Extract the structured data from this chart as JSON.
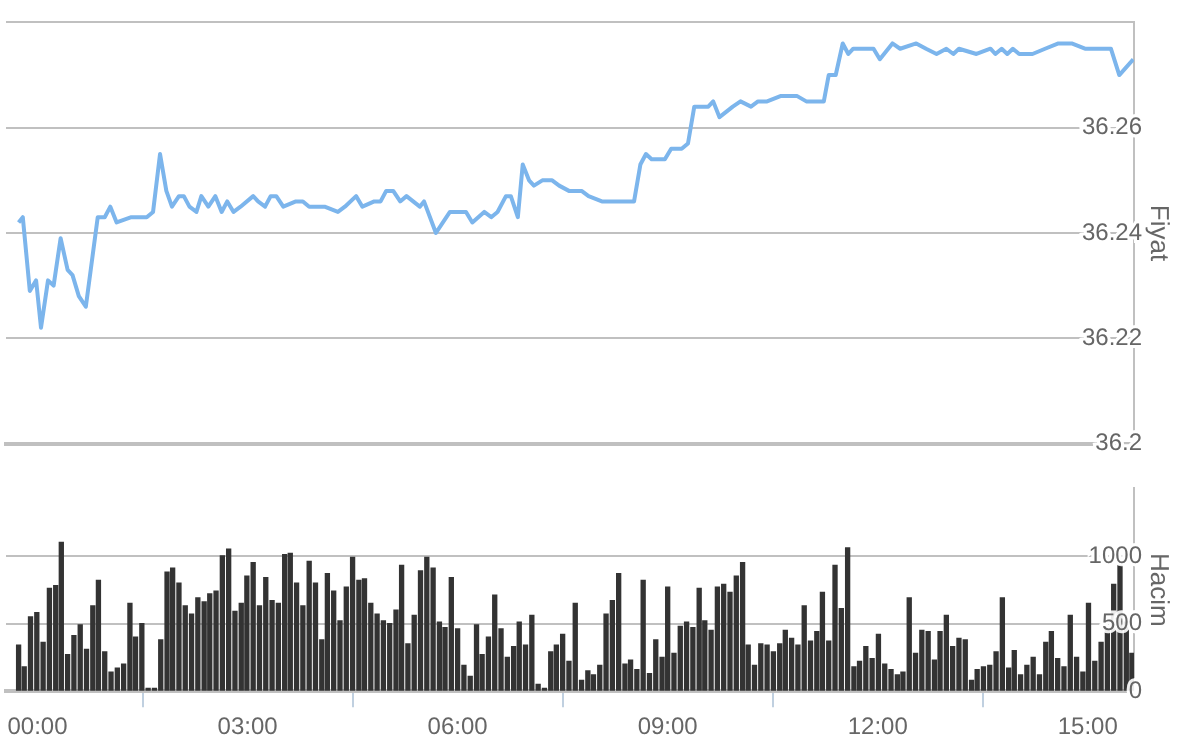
{
  "chart_data": [
    {
      "type": "line",
      "ylabel": "Fiyat",
      "color": "#7cb5ec",
      "x": [
        -0.27,
        -0.21,
        -0.11,
        -0.02,
        0.05,
        0.15,
        0.23,
        0.33,
        0.43,
        0.5,
        0.59,
        0.69,
        0.86,
        0.96,
        1.04,
        1.13,
        1.34,
        1.56,
        1.65,
        1.75,
        1.84,
        1.92,
        2.02,
        2.09,
        2.17,
        2.27,
        2.34,
        2.44,
        2.54,
        2.63,
        2.71,
        2.8,
        2.9,
        3.08,
        3.15,
        3.25,
        3.33,
        3.41,
        3.51,
        3.69,
        3.79,
        3.88,
        4.1,
        4.29,
        4.39,
        4.55,
        4.64,
        4.81,
        4.9,
        4.98,
        5.08,
        5.18,
        5.27,
        5.46,
        5.52,
        5.69,
        5.79,
        5.89,
        6.02,
        6.12,
        6.21,
        6.38,
        6.48,
        6.57,
        6.69,
        6.76,
        6.86,
        6.93,
        7.02,
        7.09,
        7.21,
        7.35,
        7.45,
        7.59,
        7.77,
        7.87,
        8.06,
        8.52,
        8.61,
        8.69,
        8.77,
        8.96,
        9.05,
        9.2,
        9.29,
        9.38,
        9.58,
        9.65,
        9.74,
        9.93,
        10.04,
        10.19,
        10.29,
        10.42,
        10.61,
        10.73,
        10.85,
        10.98,
        11.23,
        11.3,
        11.4,
        11.5,
        11.58,
        11.65,
        11.8,
        11.94,
        12.03,
        12.21,
        12.32,
        12.55,
        12.69,
        12.84,
        12.98,
        13.08,
        13.16,
        13.41,
        13.61,
        13.68,
        13.77,
        13.85,
        13.93,
        14.02,
        14.21,
        14.39,
        14.58,
        14.77,
        14.96,
        15.16,
        15.33,
        15.45,
        15.65
      ],
      "values": [
        36.242,
        36.243,
        36.229,
        36.231,
        36.222,
        36.231,
        36.23,
        36.239,
        36.233,
        36.232,
        36.228,
        36.226,
        36.243,
        36.243,
        36.245,
        36.242,
        36.243,
        36.243,
        36.244,
        36.255,
        36.248,
        36.245,
        36.247,
        36.247,
        36.245,
        36.244,
        36.247,
        36.245,
        36.247,
        36.244,
        36.246,
        36.244,
        36.245,
        36.247,
        36.246,
        36.245,
        36.247,
        36.247,
        36.245,
        36.246,
        36.246,
        36.245,
        36.245,
        36.244,
        36.245,
        36.247,
        36.245,
        36.246,
        36.246,
        36.248,
        36.248,
        36.246,
        36.247,
        36.245,
        36.246,
        36.24,
        36.242,
        36.244,
        36.244,
        36.244,
        36.242,
        36.244,
        36.243,
        36.244,
        36.247,
        36.247,
        36.243,
        36.253,
        36.25,
        36.249,
        36.25,
        36.25,
        36.249,
        36.248,
        36.248,
        36.247,
        36.246,
        36.246,
        36.253,
        36.255,
        36.254,
        36.254,
        36.256,
        36.256,
        36.257,
        36.264,
        36.264,
        36.265,
        36.262,
        36.264,
        36.265,
        36.264,
        36.265,
        36.265,
        36.266,
        36.266,
        36.266,
        36.265,
        36.265,
        36.27,
        36.27,
        36.276,
        36.274,
        36.275,
        36.275,
        36.275,
        36.273,
        36.276,
        36.275,
        36.276,
        36.275,
        36.274,
        36.275,
        36.274,
        36.275,
        36.274,
        36.275,
        36.274,
        36.275,
        36.274,
        36.275,
        36.274,
        36.274,
        36.275,
        36.276,
        36.276,
        36.275,
        36.275,
        36.275,
        36.27,
        36.273
      ],
      "xlim": [
        -0.45,
        15.66
      ],
      "ylim": [
        36.2,
        36.28
      ],
      "yticks": [
        36.2,
        36.22,
        36.24,
        36.26,
        {
          "value": 36.28,
          "label": null
        }
      ],
      "grid": "y",
      "tick_labels": "y"
    },
    {
      "type": "bar",
      "ylabel": "Hacim",
      "color": "#333333",
      "x": [
        -0.27,
        -0.19,
        -0.1,
        -0.01,
        0.08,
        0.17,
        0.26,
        0.34,
        0.43,
        0.52,
        0.61,
        0.7,
        0.79,
        0.87,
        0.96,
        1.05,
        1.14,
        1.23,
        1.32,
        1.4,
        1.49,
        1.58,
        1.67,
        1.76,
        1.85,
        1.93,
        2.02,
        2.11,
        2.2,
        2.29,
        2.38,
        2.46,
        2.55,
        2.64,
        2.73,
        2.82,
        2.91,
        2.99,
        3.08,
        3.17,
        3.26,
        3.35,
        3.44,
        3.53,
        3.61,
        3.7,
        3.79,
        3.88,
        3.97,
        4.06,
        4.14,
        4.23,
        4.32,
        4.41,
        4.5,
        4.59,
        4.67,
        4.76,
        4.85,
        4.94,
        5.03,
        5.12,
        5.2,
        5.29,
        5.38,
        5.47,
        5.56,
        5.65,
        5.74,
        5.82,
        5.91,
        6.0,
        6.09,
        6.18,
        6.27,
        6.35,
        6.44,
        6.53,
        6.62,
        6.71,
        6.8,
        6.88,
        6.97,
        7.06,
        7.15,
        7.24,
        7.33,
        7.41,
        7.5,
        7.59,
        7.68,
        7.77,
        7.86,
        7.94,
        8.03,
        8.12,
        8.21,
        8.3,
        8.39,
        8.47,
        8.56,
        8.65,
        8.74,
        8.83,
        8.92,
        9.0,
        9.09,
        9.18,
        9.27,
        9.36,
        9.45,
        9.53,
        9.62,
        9.71,
        9.8,
        9.89,
        9.98,
        10.07,
        10.15,
        10.24,
        10.33,
        10.42,
        10.51,
        10.6,
        10.68,
        10.77,
        10.86,
        10.95,
        11.04,
        11.13,
        11.21,
        11.3,
        11.39,
        11.48,
        11.57,
        11.66,
        11.74,
        11.83,
        11.92,
        12.01,
        12.1,
        12.19,
        12.28,
        12.36,
        12.45,
        12.54,
        12.63,
        12.72,
        12.81,
        12.89,
        12.98,
        13.07,
        13.16,
        13.25,
        13.34,
        13.42,
        13.51,
        13.6,
        13.69,
        13.78,
        13.87,
        13.95,
        14.04,
        14.13,
        14.22,
        14.31,
        14.4,
        14.48,
        14.57,
        14.66,
        14.75,
        14.84,
        14.93,
        15.01,
        15.1,
        15.19,
        15.28,
        15.37,
        15.46,
        15.55,
        15.63
      ],
      "values": [
        340,
        180,
        550,
        580,
        360,
        760,
        780,
        1100,
        270,
        410,
        490,
        310,
        630,
        820,
        290,
        140,
        170,
        200,
        650,
        400,
        500,
        20,
        20,
        380,
        880,
        910,
        800,
        630,
        570,
        690,
        660,
        720,
        740,
        1000,
        1050,
        590,
        650,
        850,
        950,
        630,
        840,
        670,
        650,
        1010,
        1020,
        800,
        630,
        960,
        800,
        380,
        870,
        740,
        520,
        770,
        990,
        820,
        830,
        650,
        570,
        520,
        500,
        600,
        930,
        350,
        560,
        890,
        990,
        910,
        510,
        470,
        840,
        460,
        190,
        110,
        490,
        270,
        400,
        710,
        460,
        250,
        330,
        510,
        340,
        560,
        50,
        20,
        290,
        340,
        420,
        220,
        650,
        80,
        150,
        120,
        190,
        570,
        670,
        870,
        200,
        230,
        160,
        820,
        130,
        380,
        250,
        770,
        280,
        480,
        510,
        470,
        760,
        520,
        450,
        770,
        790,
        730,
        850,
        950,
        340,
        190,
        350,
        340,
        290,
        350,
        450,
        390,
        340,
        630,
        370,
        440,
        730,
        370,
        930,
        610,
        1060,
        180,
        220,
        330,
        240,
        420,
        200,
        160,
        120,
        140,
        690,
        280,
        450,
        440,
        230,
        440,
        560,
        330,
        390,
        380,
        80,
        160,
        180,
        190,
        290,
        690,
        170,
        300,
        120,
        190,
        250,
        120,
        360,
        440,
        240,
        180,
        560,
        250,
        140,
        650,
        220,
        360,
        450,
        790,
        930,
        510,
        280
      ],
      "xlim": [
        -0.45,
        15.66
      ],
      "xticks": [
        {
          "value": 0,
          "label": "00:00"
        },
        {
          "value": 3,
          "label": "03:00"
        },
        {
          "value": 6,
          "label": "06:00"
        },
        {
          "value": 9,
          "label": "09:00"
        },
        {
          "value": 12,
          "label": "12:00"
        },
        {
          "value": 15,
          "label": "15:00"
        }
      ],
      "ylim": [
        0,
        1500
      ],
      "yticks": [
        0,
        500,
        1000
      ],
      "grid": "y"
    }
  ]
}
